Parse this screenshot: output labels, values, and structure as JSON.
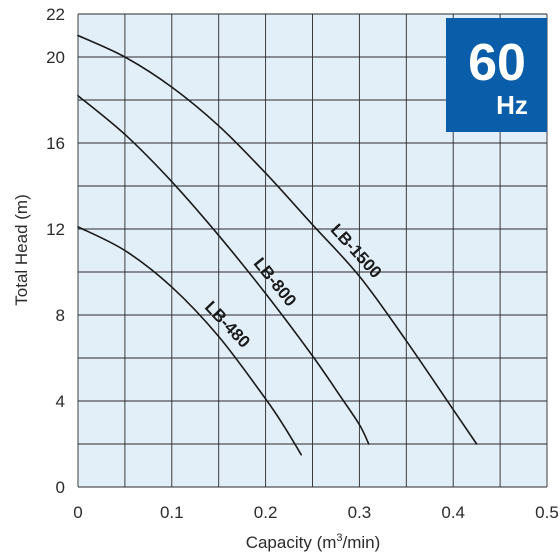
{
  "chart_data": {
    "type": "line",
    "title": "",
    "xlabel": "Capacity (m",
    "xlabel_sup": "3",
    "xlabel_tail": "/min)",
    "ylabel": "Total Head (m)",
    "xlim": [
      0,
      0.5
    ],
    "ylim": [
      0,
      22
    ],
    "xticks": [
      0,
      0.1,
      0.2,
      0.3,
      0.4,
      0.5
    ],
    "xtick_labels": [
      "0",
      "0.1",
      "0.2",
      "0.3",
      "0.4",
      "0.5"
    ],
    "yticks": [
      0,
      4,
      8,
      12,
      16,
      20,
      22
    ],
    "ytick_labels": [
      "0",
      "4",
      "8",
      "12",
      "16",
      "20",
      "22"
    ],
    "grid": true,
    "grid_step_x": 0.05,
    "grid_step_y": 2,
    "plot_background": "#e2eef8",
    "grid_color": "#2a2a2a",
    "series": [
      {
        "name": "LB-1500",
        "x": [
          0,
          0.05,
          0.1,
          0.15,
          0.2,
          0.25,
          0.3,
          0.35,
          0.4,
          0.425
        ],
        "y": [
          21.0,
          20.0,
          18.6,
          16.8,
          14.6,
          12.2,
          9.8,
          6.8,
          3.6,
          2.0
        ]
      },
      {
        "name": "LB-800",
        "x": [
          0,
          0.05,
          0.1,
          0.15,
          0.2,
          0.25,
          0.28,
          0.3,
          0.31
        ],
        "y": [
          18.2,
          16.4,
          14.2,
          11.7,
          9.0,
          6.1,
          4.2,
          2.9,
          2.0
        ]
      },
      {
        "name": "LB-480",
        "x": [
          0,
          0.05,
          0.1,
          0.15,
          0.2,
          0.22,
          0.238
        ],
        "y": [
          12.1,
          11.0,
          9.3,
          7.0,
          4.1,
          2.8,
          1.5
        ]
      }
    ],
    "curve_color": "#1a1a1a",
    "badge": {
      "value": "60",
      "unit": "Hz",
      "color": "#0a5da8"
    }
  }
}
